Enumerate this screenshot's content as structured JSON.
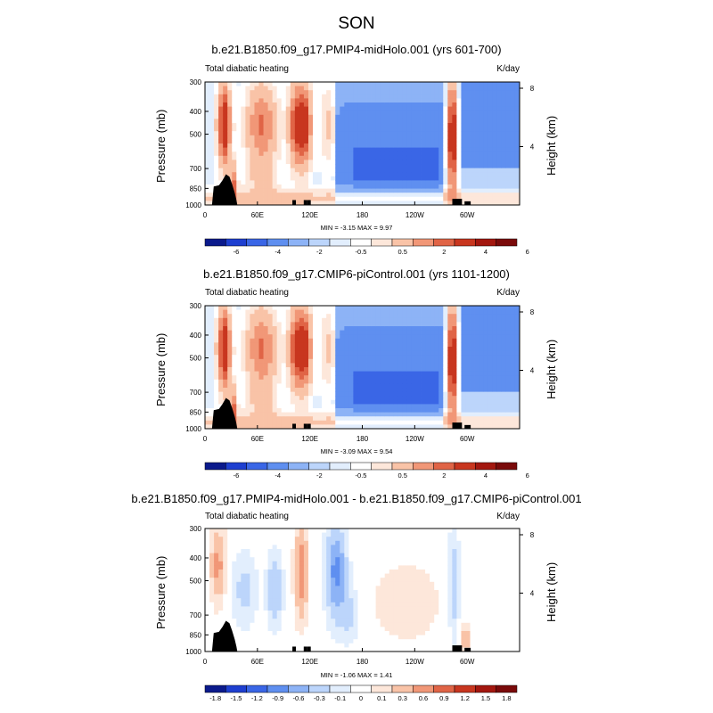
{
  "season_title": "SON",
  "colors": {
    "diverging": [
      "#0b1a8c",
      "#1e3fd0",
      "#3a66e6",
      "#5f8ff0",
      "#8db3f6",
      "#bcd5fb",
      "#e2eefd",
      "#ffffff",
      "#fde7da",
      "#f9c3a7",
      "#f19777",
      "#e06446",
      "#c8361f",
      "#a3170f",
      "#7a0a0a"
    ],
    "land": "#000000"
  },
  "chart_data": [
    {
      "type": "heatmap",
      "title": "b.e21.B1850.f09_g17.PMIP4-midHolo.001 (yrs 601-700)",
      "left_label": "Total diabatic heating",
      "unit_label": "K/day",
      "ylabel": "Pressure (mb)",
      "ylabel_right": "Height (km)",
      "x_ticks": [
        "0",
        "60E",
        "120E",
        "180",
        "120W",
        "60W"
      ],
      "y_ticks": [
        "300",
        "400",
        "500",
        "700",
        "850",
        "1000"
      ],
      "y_right_ticks": [
        "8",
        "4"
      ],
      "minmax_text": "MIN =  -3.15   MAX =   9.97",
      "colorbar_labels": [
        "-6",
        "-4",
        "-2",
        "-0.5",
        "0.5",
        "2",
        "4",
        "6"
      ],
      "field": "full"
    },
    {
      "type": "heatmap",
      "title": "b.e21.B1850.f09_g17.CMIP6-piControl.001 (yrs 1101-1200)",
      "left_label": "Total diabatic heating",
      "unit_label": "K/day",
      "ylabel": "Pressure (mb)",
      "ylabel_right": "Height (km)",
      "x_ticks": [
        "0",
        "60E",
        "120E",
        "180",
        "120W",
        "60W"
      ],
      "y_ticks": [
        "300",
        "400",
        "500",
        "700",
        "850",
        "1000"
      ],
      "y_right_ticks": [
        "8",
        "4"
      ],
      "minmax_text": "MIN =  -3.09   MAX =   9.54",
      "colorbar_labels": [
        "-6",
        "-4",
        "-2",
        "-0.5",
        "0.5",
        "2",
        "4",
        "6"
      ],
      "field": "full"
    },
    {
      "type": "heatmap",
      "title": "b.e21.B1850.f09_g17.PMIP4-midHolo.001 - b.e21.B1850.f09_g17.CMIP6-piControl.001",
      "left_label": "Total diabatic heating",
      "unit_label": "K/day",
      "ylabel": "Pressure (mb)",
      "ylabel_right": "Height (km)",
      "x_ticks": [
        "0",
        "60E",
        "120E",
        "180",
        "120W",
        "60W"
      ],
      "y_ticks": [
        "300",
        "400",
        "500",
        "700",
        "850",
        "1000"
      ],
      "y_right_ticks": [
        "8",
        "4"
      ],
      "minmax_text": "MIN =  -1.06   MAX =   1.41",
      "colorbar_labels": [
        "-1.8",
        "-1.5",
        "-1.2",
        "-0.9",
        "-0.6",
        "-0.3",
        "-0.1",
        "0",
        "0.1",
        "0.3",
        "0.6",
        "0.9",
        "1.2",
        "1.5",
        "1.8"
      ],
      "field": "diff"
    }
  ]
}
